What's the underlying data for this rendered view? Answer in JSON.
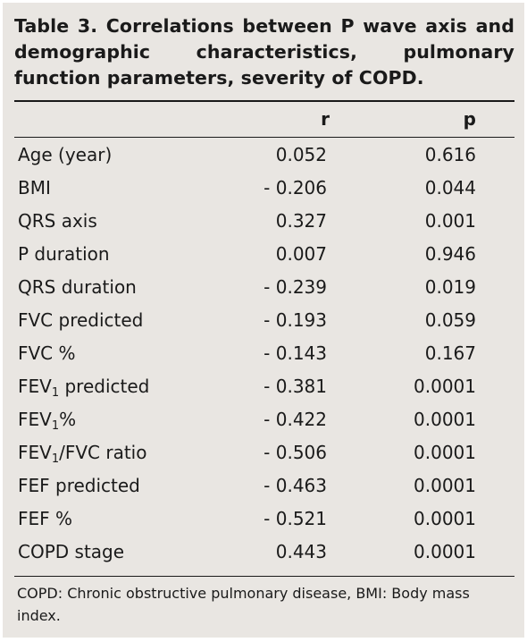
{
  "table": {
    "title": "Table 3. Correlations between P wave axis and demographic characteristics, pulmonary function parameters, severity of COPD.",
    "columns": {
      "r": "r",
      "p": "p"
    },
    "rows": [
      {
        "label": "Age (year)",
        "r": "0.052",
        "p": "0.616"
      },
      {
        "label": "BMI",
        "r": "- 0.206",
        "p": "0.044"
      },
      {
        "label": "QRS axis",
        "r": "0.327",
        "p": "0.001"
      },
      {
        "label": "P duration",
        "r": "0.007",
        "p": "0.946"
      },
      {
        "label": "QRS duration",
        "r": "- 0.239",
        "p": "0.019"
      },
      {
        "label": "FVC predicted",
        "r": "- 0.193",
        "p": "0.059"
      },
      {
        "label": "FVC %",
        "r": "- 0.143",
        "p": "0.167"
      },
      {
        "label_pre": "FEV",
        "label_sub": "1",
        "label_post": " predicted",
        "r": "- 0.381",
        "p": "0.0001"
      },
      {
        "label_pre": "FEV",
        "label_sub": "1",
        "label_post": "%",
        "r": "- 0.422",
        "p": "0.0001"
      },
      {
        "label_pre": "FEV",
        "label_sub": "1",
        "label_post": "/FVC ratio",
        "r": "- 0.506",
        "p": "0.0001"
      },
      {
        "label": "FEF predicted",
        "r": "- 0.463",
        "p": "0.0001"
      },
      {
        "label": "FEF %",
        "r": "- 0.521",
        "p": "0.0001"
      },
      {
        "label": "COPD stage",
        "r": "0.443",
        "p": "0.0001"
      }
    ],
    "footnote": "COPD: Chronic obstructive pulmonary disease, BMI: Body mass index."
  }
}
